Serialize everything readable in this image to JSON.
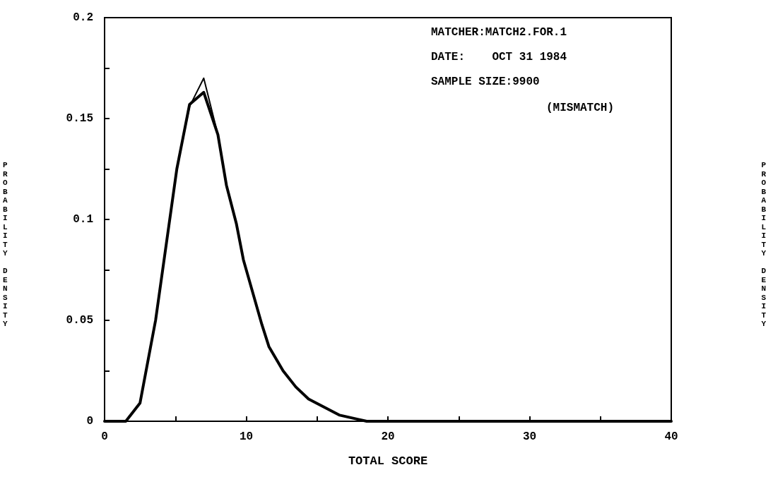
{
  "chart_data": {
    "type": "line",
    "xlabel": "TOTAL SCORE",
    "ylabel": "PROBABILITY DENSITY",
    "y2label": "PROBABILITY DENSITY",
    "annotations": [
      "MATCHER:MATCH2.FOR.1",
      "DATE:    OCT 31 1984",
      "SAMPLE SIZE:9900",
      "(MISMATCH)"
    ],
    "series": [
      {
        "color": "#000000",
        "x": [
          0,
          1.5,
          2.5,
          3.6,
          4.6,
          5.1,
          6,
          7,
          8,
          8.6,
          9.3,
          9.8,
          11.1,
          11.6,
          12.6,
          13.5,
          14.4,
          16.6,
          18.5,
          25,
          40
        ],
        "values": [
          0,
          0,
          0.009,
          0.05,
          0.1,
          0.125,
          0.157,
          0.163,
          0.142,
          0.117,
          0.098,
          0.08,
          0.048,
          0.037,
          0.025,
          0.017,
          0.011,
          0.003,
          0,
          0,
          0
        ]
      },
      {
        "color": "#000000",
        "x": [
          5.1,
          6,
          7,
          8
        ],
        "values": [
          0.125,
          0.156,
          0.17,
          0.142
        ]
      }
    ],
    "xlim": [
      0,
      40
    ],
    "ylim": [
      0,
      0.2
    ],
    "xticks": [
      0,
      {
        "value": 5,
        "label": null
      },
      10,
      {
        "value": 15,
        "label": null
      },
      20,
      {
        "value": 25,
        "label": null
      },
      30,
      {
        "value": 35,
        "label": null
      },
      40
    ],
    "yticks": [
      0,
      {
        "value": 0.025,
        "label": null
      },
      0.05,
      {
        "value": 0.075,
        "label": null
      },
      0.1,
      {
        "value": 0.125,
        "label": null
      },
      0.15,
      {
        "value": 0.175,
        "label": null
      },
      0.2
    ],
    "grid": false,
    "marker": "none",
    "line_style": "solid"
  }
}
